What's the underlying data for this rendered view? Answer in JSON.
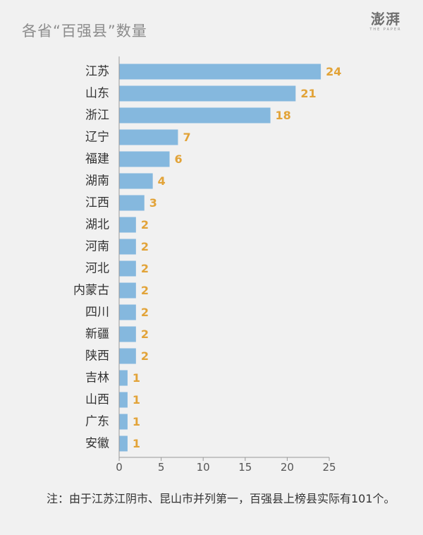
{
  "title": "各省“百强县”数量",
  "logo": {
    "mark": "澎湃",
    "sub": "THE PAPER"
  },
  "footnote": "注：由于江苏江阴市、昆山市并列第一，百强县上榜县实际有101个。",
  "colors": {
    "bar": "#85b8de",
    "value_label": "#e2a338",
    "axis": "#999999",
    "text": "#333333"
  },
  "chart_data": {
    "type": "bar",
    "orientation": "horizontal",
    "title": "各省“百强县”数量",
    "xlabel": "",
    "ylabel": "",
    "xlim": [
      0,
      25
    ],
    "xticks": [
      0,
      5,
      10,
      15,
      20,
      25
    ],
    "grid": false,
    "categories": [
      "江苏",
      "山东",
      "浙江",
      "辽宁",
      "福建",
      "湖南",
      "江西",
      "湖北",
      "河南",
      "河北",
      "内蒙古",
      "四川",
      "新疆",
      "陕西",
      "吉林",
      "山西",
      "广东",
      "安徽"
    ],
    "values": [
      24,
      21,
      18,
      7,
      6,
      4,
      3,
      2,
      2,
      2,
      2,
      2,
      2,
      2,
      1,
      1,
      1,
      1
    ]
  }
}
